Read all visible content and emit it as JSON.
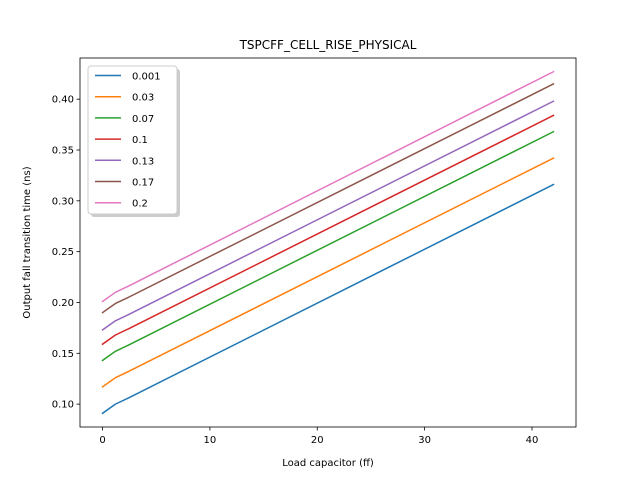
{
  "chart_data": {
    "type": "line",
    "title": "TSPCFF_CELL_RISE_PHYSICAL",
    "xlabel": "Load capacitor (ff)",
    "ylabel": "Output fall transition time (ns)",
    "xlim": [
      -2.1,
      44.1
    ],
    "ylim": [
      0.0775,
      0.4405
    ],
    "x_ticks": [
      0,
      10,
      20,
      30,
      40
    ],
    "y_ticks": [
      0.1,
      0.15,
      0.2,
      0.25,
      0.3,
      0.35,
      0.4
    ],
    "x_tick_labels": [
      "0",
      "10",
      "20",
      "30",
      "40"
    ],
    "y_tick_labels": [
      "0.10",
      "0.15",
      "0.20",
      "0.25",
      "0.30",
      "0.35",
      "0.40"
    ],
    "grid": false,
    "legend_position": "upper-left",
    "x": [
      0,
      1.2,
      2.4,
      42
    ],
    "series": [
      {
        "name": "0.001",
        "color": "#1f77b4",
        "values": [
          0.091,
          0.1,
          0.106,
          0.316
        ]
      },
      {
        "name": "0.03",
        "color": "#ff7f0e",
        "values": [
          0.117,
          0.126,
          0.132,
          0.342
        ]
      },
      {
        "name": "0.07",
        "color": "#2ca02c",
        "values": [
          0.143,
          0.152,
          0.158,
          0.368
        ]
      },
      {
        "name": "0.1",
        "color": "#d62728",
        "values": [
          0.159,
          0.168,
          0.174,
          0.384
        ]
      },
      {
        "name": "0.13",
        "color": "#9467bd",
        "values": [
          0.173,
          0.182,
          0.188,
          0.398
        ]
      },
      {
        "name": "0.17",
        "color": "#8c564b",
        "values": [
          0.19,
          0.199,
          0.205,
          0.415
        ]
      },
      {
        "name": "0.2",
        "color": "#e377c2",
        "values": [
          0.201,
          0.21,
          0.216,
          0.427
        ]
      }
    ]
  }
}
